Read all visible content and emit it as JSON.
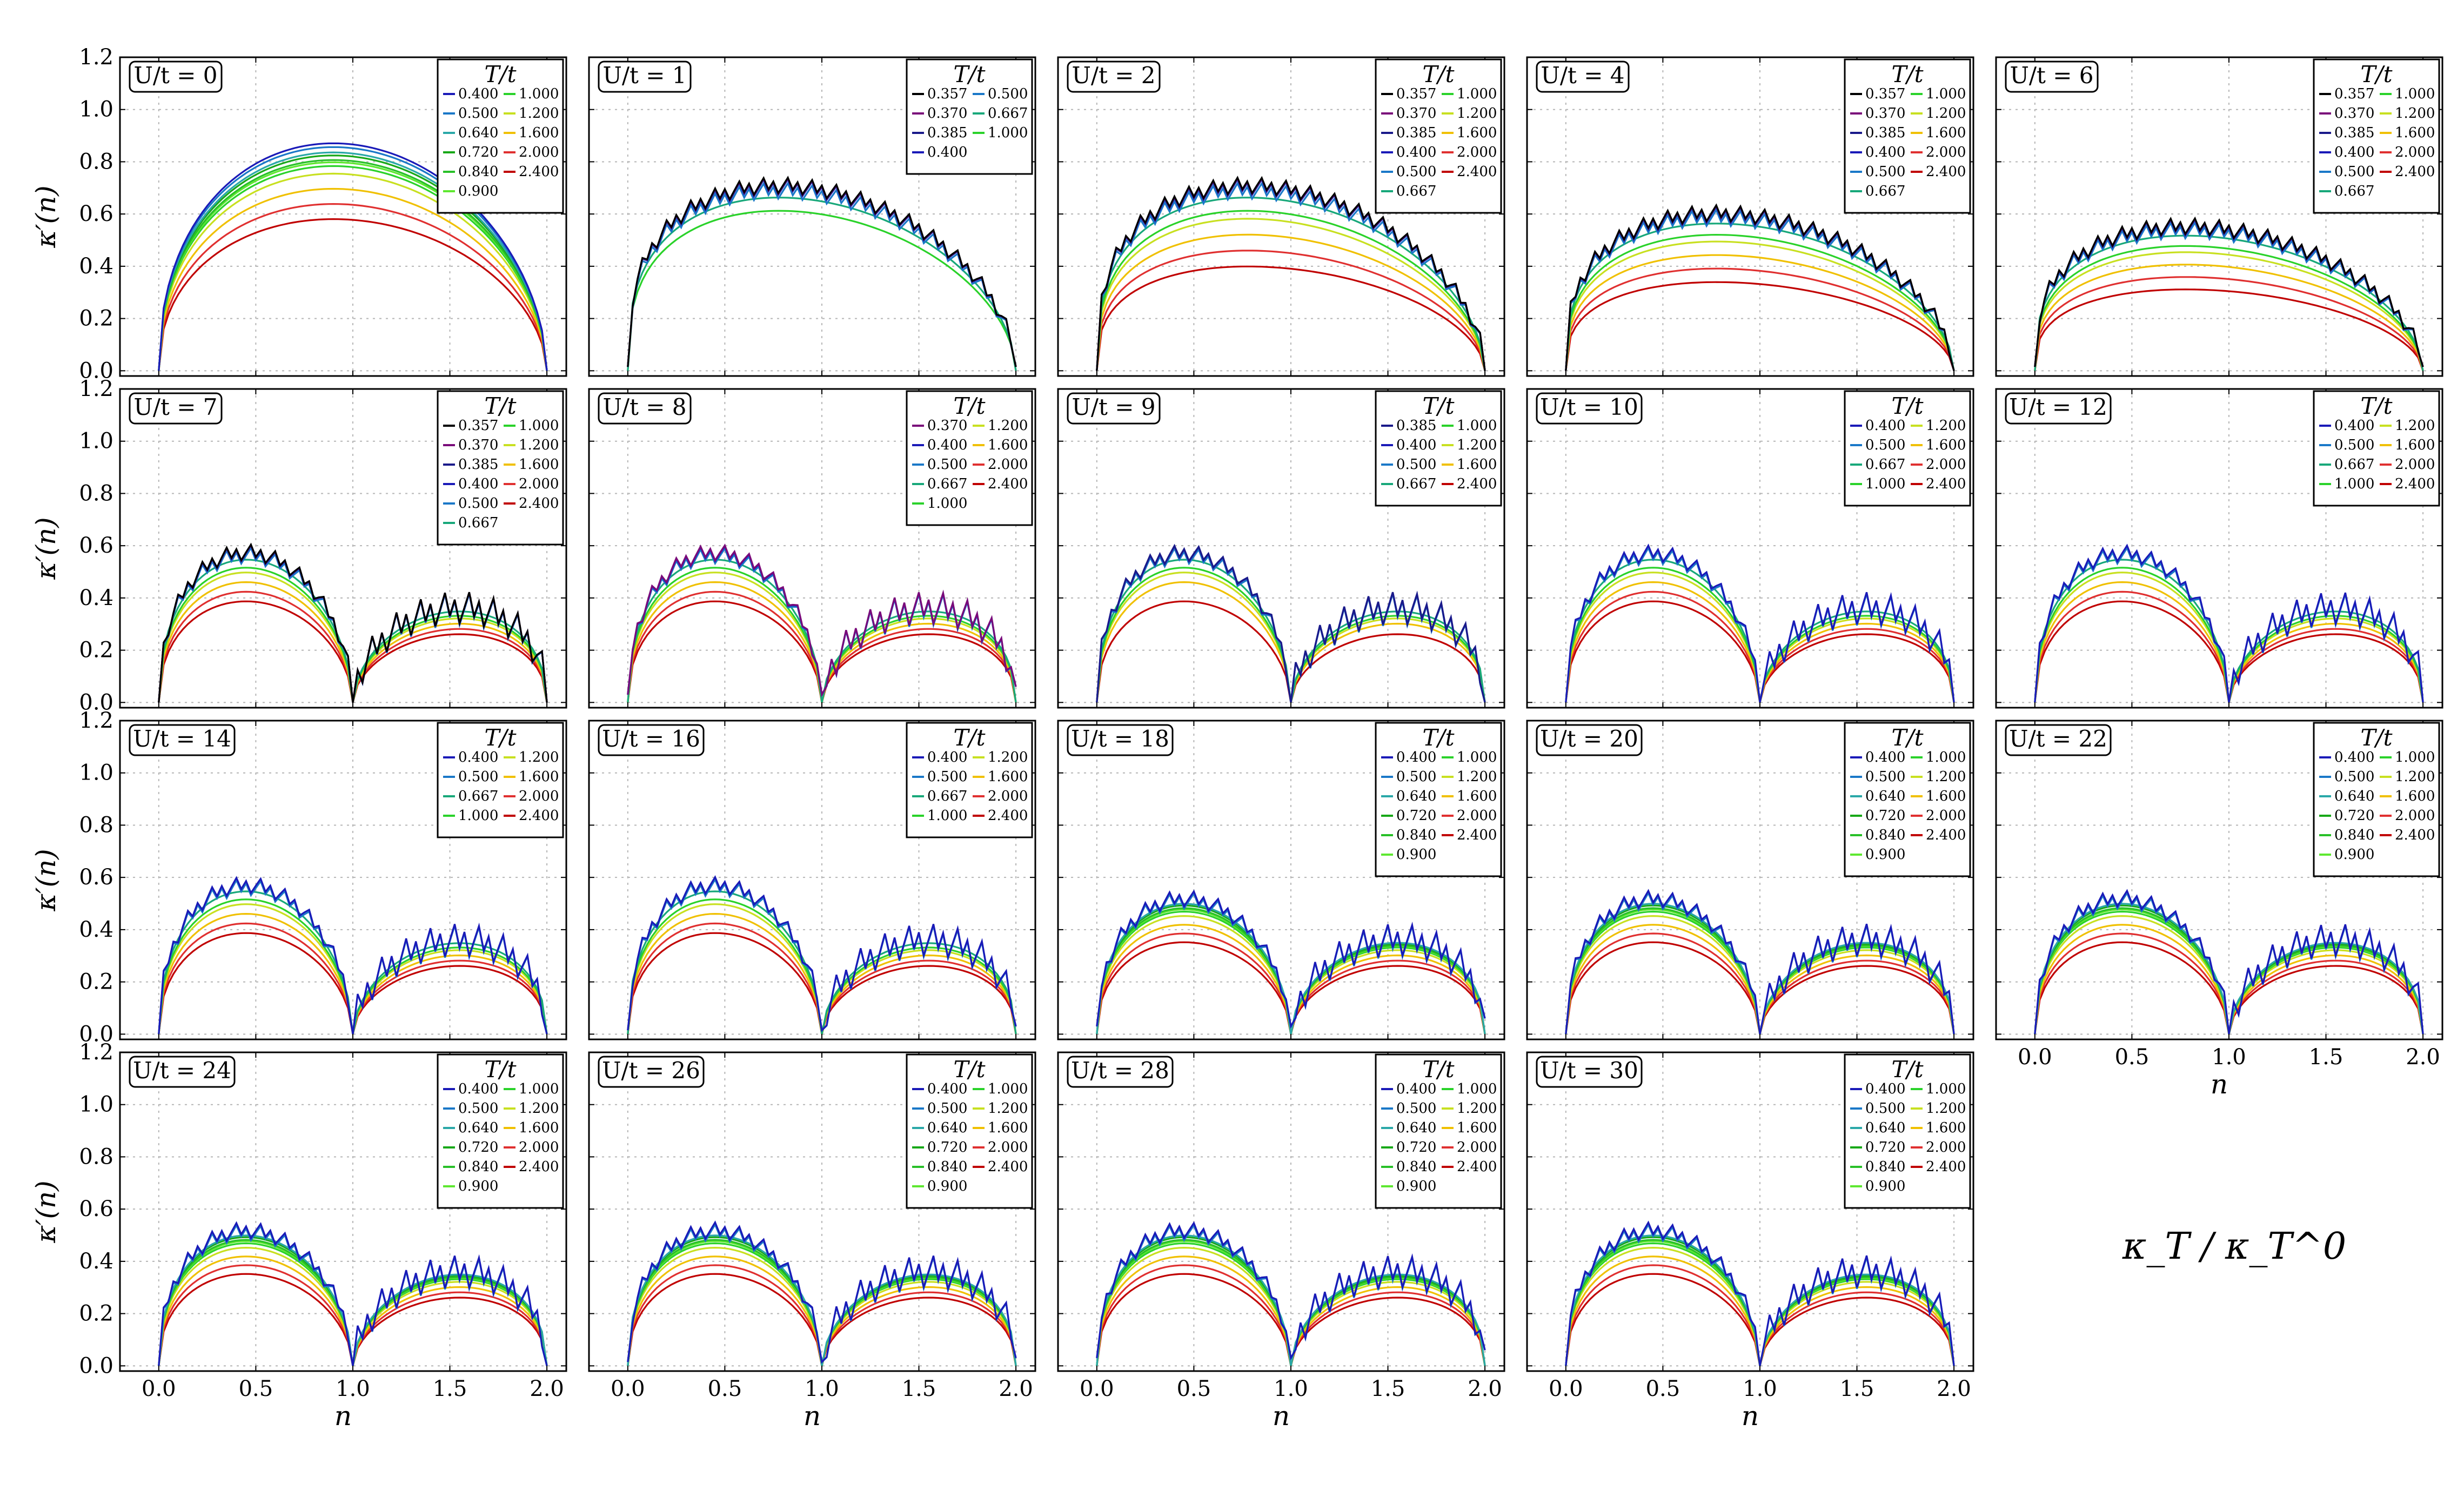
{
  "figure": {
    "annotation": "κ_T / κ_T^0"
  },
  "colors": {
    "0.357": "#000000",
    "0.370": "#7a0a7a",
    "0.385": "#1a1a8a",
    "0.400": "#1a1ab8",
    "0.500": "#1a78c8",
    "0.640": "#2aa8a8",
    "0.667": "#18a87a",
    "0.720": "#18a818",
    "0.840": "#28c028",
    "0.900": "#5ee830",
    "1.000": "#2ad22a",
    "1.200": "#c8e020",
    "1.600": "#f0c000",
    "2.000": "#e03030",
    "2.400": "#c00000"
  },
  "chart_data": [
    {
      "type": "line",
      "panel_label": "U/t = 0",
      "U": 0,
      "legend_title": "T/t",
      "temps": [
        "0.400",
        "0.500",
        "0.640",
        "0.720",
        "0.840",
        "0.900",
        "1.000",
        "1.200",
        "1.600",
        "2.000",
        "2.400"
      ],
      "gap": false,
      "ytick_labels": true,
      "xtick_labels": false,
      "ylabel": "κ′(n)",
      "xlabel": "",
      "xlim": [
        -0.2,
        2.1
      ],
      "ylim": [
        -0.02,
        1.2
      ]
    },
    {
      "type": "line",
      "panel_label": "U/t = 1",
      "U": 1,
      "legend_title": "T/t",
      "temps": [
        "0.357",
        "0.370",
        "0.385",
        "0.400",
        "0.500",
        "0.667",
        "1.000"
      ],
      "gap": false,
      "ytick_labels": false,
      "xtick_labels": false,
      "ylabel": "",
      "xlabel": "",
      "xlim": [
        -0.2,
        2.1
      ],
      "ylim": [
        -0.02,
        1.2
      ]
    },
    {
      "type": "line",
      "panel_label": "U/t = 2",
      "U": 2,
      "legend_title": "T/t",
      "temps": [
        "0.357",
        "0.370",
        "0.385",
        "0.400",
        "0.500",
        "0.667",
        "1.000",
        "1.200",
        "1.600",
        "2.000",
        "2.400"
      ],
      "gap": false,
      "ytick_labels": false,
      "xtick_labels": false,
      "ylabel": "",
      "xlabel": "",
      "xlim": [
        -0.2,
        2.1
      ],
      "ylim": [
        -0.02,
        1.2
      ]
    },
    {
      "type": "line",
      "panel_label": "U/t = 4",
      "U": 4,
      "legend_title": "T/t",
      "temps": [
        "0.357",
        "0.370",
        "0.385",
        "0.400",
        "0.500",
        "0.667",
        "1.000",
        "1.200",
        "1.600",
        "2.000",
        "2.400"
      ],
      "gap": false,
      "ytick_labels": false,
      "xtick_labels": false,
      "ylabel": "",
      "xlabel": "",
      "xlim": [
        -0.2,
        2.1
      ],
      "ylim": [
        -0.02,
        1.2
      ]
    },
    {
      "type": "line",
      "panel_label": "U/t = 6",
      "U": 6,
      "legend_title": "T/t",
      "temps": [
        "0.357",
        "0.370",
        "0.385",
        "0.400",
        "0.500",
        "0.667",
        "1.000",
        "1.200",
        "1.600",
        "2.000",
        "2.400"
      ],
      "gap": false,
      "ytick_labels": false,
      "xtick_labels": false,
      "ylabel": "",
      "xlabel": "",
      "xlim": [
        -0.2,
        2.1
      ],
      "ylim": [
        -0.02,
        1.2
      ]
    },
    {
      "type": "line",
      "panel_label": "U/t = 7",
      "U": 7,
      "legend_title": "T/t",
      "temps": [
        "0.357",
        "0.370",
        "0.385",
        "0.400",
        "0.500",
        "0.667",
        "1.000",
        "1.200",
        "1.600",
        "2.000",
        "2.400"
      ],
      "gap": true,
      "ytick_labels": true,
      "xtick_labels": false,
      "ylabel": "κ′(n)",
      "xlabel": "",
      "xlim": [
        -0.2,
        2.1
      ],
      "ylim": [
        -0.02,
        1.2
      ]
    },
    {
      "type": "line",
      "panel_label": "U/t = 8",
      "U": 8,
      "legend_title": "T/t",
      "temps": [
        "0.370",
        "0.400",
        "0.500",
        "0.667",
        "1.000",
        "1.200",
        "1.600",
        "2.000",
        "2.400"
      ],
      "gap": true,
      "ytick_labels": false,
      "xtick_labels": false,
      "ylabel": "",
      "xlabel": "",
      "xlim": [
        -0.2,
        2.1
      ],
      "ylim": [
        -0.02,
        1.2
      ]
    },
    {
      "type": "line",
      "panel_label": "U/t = 9",
      "U": 9,
      "legend_title": "T/t",
      "temps": [
        "0.385",
        "0.400",
        "0.500",
        "0.667",
        "1.000",
        "1.200",
        "1.600",
        "2.400"
      ],
      "gap": true,
      "ytick_labels": false,
      "xtick_labels": false,
      "ylabel": "",
      "xlabel": "",
      "xlim": [
        -0.2,
        2.1
      ],
      "ylim": [
        -0.02,
        1.2
      ]
    },
    {
      "type": "line",
      "panel_label": "U/t = 10",
      "U": 10,
      "legend_title": "T/t",
      "temps": [
        "0.400",
        "0.500",
        "0.667",
        "1.000",
        "1.200",
        "1.600",
        "2.000",
        "2.400"
      ],
      "gap": true,
      "ytick_labels": false,
      "xtick_labels": false,
      "ylabel": "",
      "xlabel": "",
      "xlim": [
        -0.2,
        2.1
      ],
      "ylim": [
        -0.02,
        1.2
      ]
    },
    {
      "type": "line",
      "panel_label": "U/t = 12",
      "U": 12,
      "legend_title": "T/t",
      "temps": [
        "0.400",
        "0.500",
        "0.667",
        "1.000",
        "1.200",
        "1.600",
        "2.000",
        "2.400"
      ],
      "gap": true,
      "ytick_labels": false,
      "xtick_labels": false,
      "ylabel": "",
      "xlabel": "",
      "xlim": [
        -0.2,
        2.1
      ],
      "ylim": [
        -0.02,
        1.2
      ]
    },
    {
      "type": "line",
      "panel_label": "U/t = 14",
      "U": 14,
      "legend_title": "T/t",
      "temps": [
        "0.400",
        "0.500",
        "0.667",
        "1.000",
        "1.200",
        "1.600",
        "2.000",
        "2.400"
      ],
      "gap": true,
      "ytick_labels": true,
      "xtick_labels": false,
      "ylabel": "κ′(n)",
      "xlabel": "",
      "xlim": [
        -0.2,
        2.1
      ],
      "ylim": [
        -0.02,
        1.2
      ]
    },
    {
      "type": "line",
      "panel_label": "U/t = 16",
      "U": 16,
      "legend_title": "T/t",
      "temps": [
        "0.400",
        "0.500",
        "0.667",
        "1.000",
        "1.200",
        "1.600",
        "2.000",
        "2.400"
      ],
      "gap": true,
      "ytick_labels": false,
      "xtick_labels": false,
      "ylabel": "",
      "xlabel": "",
      "xlim": [
        -0.2,
        2.1
      ],
      "ylim": [
        -0.02,
        1.2
      ]
    },
    {
      "type": "line",
      "panel_label": "U/t = 18",
      "U": 18,
      "legend_title": "T/t",
      "temps": [
        "0.400",
        "0.500",
        "0.640",
        "0.720",
        "0.840",
        "0.900",
        "1.000",
        "1.200",
        "1.600",
        "2.000",
        "2.400"
      ],
      "gap": true,
      "ytick_labels": false,
      "xtick_labels": false,
      "ylabel": "",
      "xlabel": "",
      "xlim": [
        -0.2,
        2.1
      ],
      "ylim": [
        -0.02,
        1.2
      ]
    },
    {
      "type": "line",
      "panel_label": "U/t = 20",
      "U": 20,
      "legend_title": "T/t",
      "temps": [
        "0.400",
        "0.500",
        "0.640",
        "0.720",
        "0.840",
        "0.900",
        "1.000",
        "1.200",
        "1.600",
        "2.000",
        "2.400"
      ],
      "gap": true,
      "ytick_labels": false,
      "xtick_labels": false,
      "ylabel": "",
      "xlabel": "",
      "xlim": [
        -0.2,
        2.1
      ],
      "ylim": [
        -0.02,
        1.2
      ]
    },
    {
      "type": "line",
      "panel_label": "U/t = 22",
      "U": 22,
      "legend_title": "T/t",
      "temps": [
        "0.400",
        "0.500",
        "0.640",
        "0.720",
        "0.840",
        "0.900",
        "1.000",
        "1.200",
        "1.600",
        "2.000",
        "2.400"
      ],
      "gap": true,
      "ytick_labels": false,
      "xtick_labels": true,
      "ylabel": "",
      "xlabel": "n",
      "xlim": [
        -0.2,
        2.1
      ],
      "ylim": [
        -0.02,
        1.2
      ]
    },
    {
      "type": "line",
      "panel_label": "U/t = 24",
      "U": 24,
      "legend_title": "T/t",
      "temps": [
        "0.400",
        "0.500",
        "0.640",
        "0.720",
        "0.840",
        "0.900",
        "1.000",
        "1.200",
        "1.600",
        "2.000",
        "2.400"
      ],
      "gap": true,
      "ytick_labels": true,
      "xtick_labels": true,
      "ylabel": "κ′(n)",
      "xlabel": "n",
      "xlim": [
        -0.2,
        2.1
      ],
      "ylim": [
        -0.02,
        1.2
      ]
    },
    {
      "type": "line",
      "panel_label": "U/t = 26",
      "U": 26,
      "legend_title": "T/t",
      "temps": [
        "0.400",
        "0.500",
        "0.640",
        "0.720",
        "0.840",
        "0.900",
        "1.000",
        "1.200",
        "1.600",
        "2.000",
        "2.400"
      ],
      "gap": true,
      "ytick_labels": false,
      "xtick_labels": true,
      "ylabel": "",
      "xlabel": "n",
      "xlim": [
        -0.2,
        2.1
      ],
      "ylim": [
        -0.02,
        1.2
      ]
    },
    {
      "type": "line",
      "panel_label": "U/t = 28",
      "U": 28,
      "legend_title": "T/t",
      "temps": [
        "0.400",
        "0.500",
        "0.640",
        "0.720",
        "0.840",
        "0.900",
        "1.000",
        "1.200",
        "1.600",
        "2.000",
        "2.400"
      ],
      "gap": true,
      "ytick_labels": false,
      "xtick_labels": true,
      "ylabel": "",
      "xlabel": "n",
      "xlim": [
        -0.2,
        2.1
      ],
      "ylim": [
        -0.02,
        1.2
      ]
    },
    {
      "type": "line",
      "panel_label": "U/t = 30",
      "U": 30,
      "legend_title": "T/t",
      "temps": [
        "0.400",
        "0.500",
        "0.640",
        "0.720",
        "0.840",
        "0.900",
        "1.000",
        "1.200",
        "1.600",
        "2.000",
        "2.400"
      ],
      "gap": true,
      "ytick_labels": false,
      "xtick_labels": true,
      "ylabel": "",
      "xlabel": "n",
      "xlim": [
        -0.2,
        2.1
      ],
      "ylim": [
        -0.02,
        1.2
      ]
    }
  ],
  "axes": {
    "xticks": [
      0.0,
      0.5,
      1.0,
      1.5,
      2.0
    ],
    "xtick_labels": [
      "0.0",
      "0.5",
      "1.0",
      "1.5",
      "2.0"
    ],
    "yticks": [
      0.0,
      0.2,
      0.4,
      0.6,
      0.8,
      1.0,
      1.2
    ],
    "ytick_labels": [
      "0.0",
      "0.2",
      "0.4",
      "0.6",
      "0.8",
      "1.0",
      "1.2"
    ]
  }
}
